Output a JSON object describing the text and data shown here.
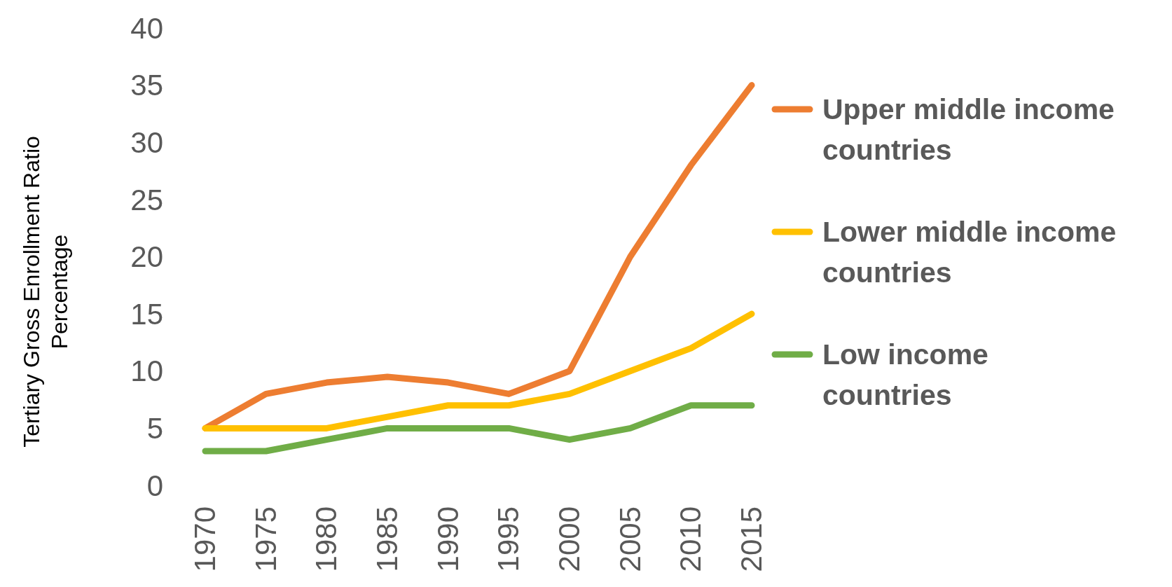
{
  "chart_data": {
    "type": "line",
    "ylabel": "Tertiary Gross Enrollment Ratio Percentage",
    "categories": [
      "1970",
      "1975",
      "1980",
      "1985",
      "1990",
      "1995",
      "2000",
      "2005",
      "2010",
      "2015"
    ],
    "series": [
      {
        "name": "Upper middle income countries",
        "color": "#ed7d31",
        "values": [
          5,
          8,
          9,
          9.5,
          9,
          8,
          10,
          20,
          28,
          35
        ]
      },
      {
        "name": "Lower middle income countries",
        "color": "#ffc000",
        "values": [
          5,
          5,
          5,
          6,
          7,
          7,
          8,
          10,
          12,
          15
        ]
      },
      {
        "name": "Low income countries",
        "color": "#70ad47",
        "values": [
          3,
          3,
          4,
          5,
          5,
          5,
          4,
          5,
          7,
          7
        ]
      }
    ],
    "ylim": [
      0,
      40
    ],
    "yticks": [
      0,
      5,
      10,
      15,
      20,
      25,
      30,
      35,
      40
    ],
    "grid": false,
    "legend": "right",
    "marker": "none",
    "line_style": "solid"
  }
}
